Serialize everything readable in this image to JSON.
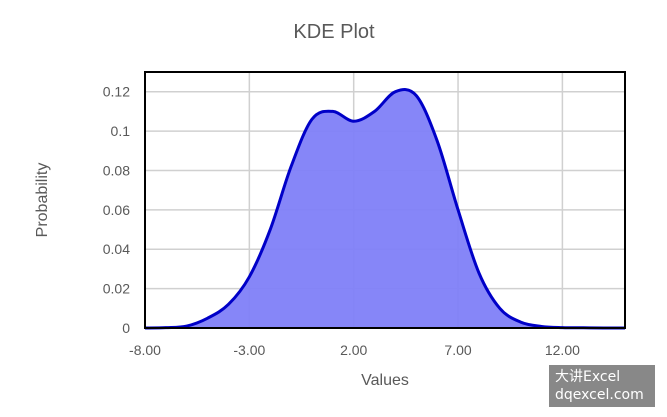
{
  "chart_data": {
    "type": "area",
    "title": "KDE Plot",
    "xlabel": "Values",
    "ylabel": "Probability",
    "xlim": [
      -8,
      15
    ],
    "ylim": [
      0,
      0.13
    ],
    "x_ticks": [
      "-8.00",
      "-3.00",
      "2.00",
      "7.00",
      "12.00"
    ],
    "y_ticks": [
      "0",
      "0.02",
      "0.04",
      "0.06",
      "0.08",
      "0.1",
      "0.12"
    ],
    "grid": true,
    "legend": "none",
    "series": [
      {
        "x": [
          -8,
          -7,
          -6,
          -5,
          -4,
          -3,
          -2,
          -1,
          0,
          1,
          2,
          3,
          4,
          5,
          6,
          7,
          8,
          9,
          10,
          11,
          12,
          13,
          14,
          15
        ],
        "y": [
          0,
          0.0002,
          0.001,
          0.005,
          0.012,
          0.026,
          0.05,
          0.082,
          0.106,
          0.11,
          0.105,
          0.11,
          0.12,
          0.118,
          0.095,
          0.06,
          0.028,
          0.01,
          0.003,
          0.0008,
          0.0002,
          0.0001,
          0,
          0
        ]
      }
    ],
    "colors": {
      "fill": "#8080f8",
      "line": "#0000c8",
      "grid": "#d0d0d0",
      "axis": "#000000",
      "text": "#595959"
    }
  },
  "watermark": {
    "line1": "大讲Excel",
    "line2": "dqexcel.com"
  }
}
